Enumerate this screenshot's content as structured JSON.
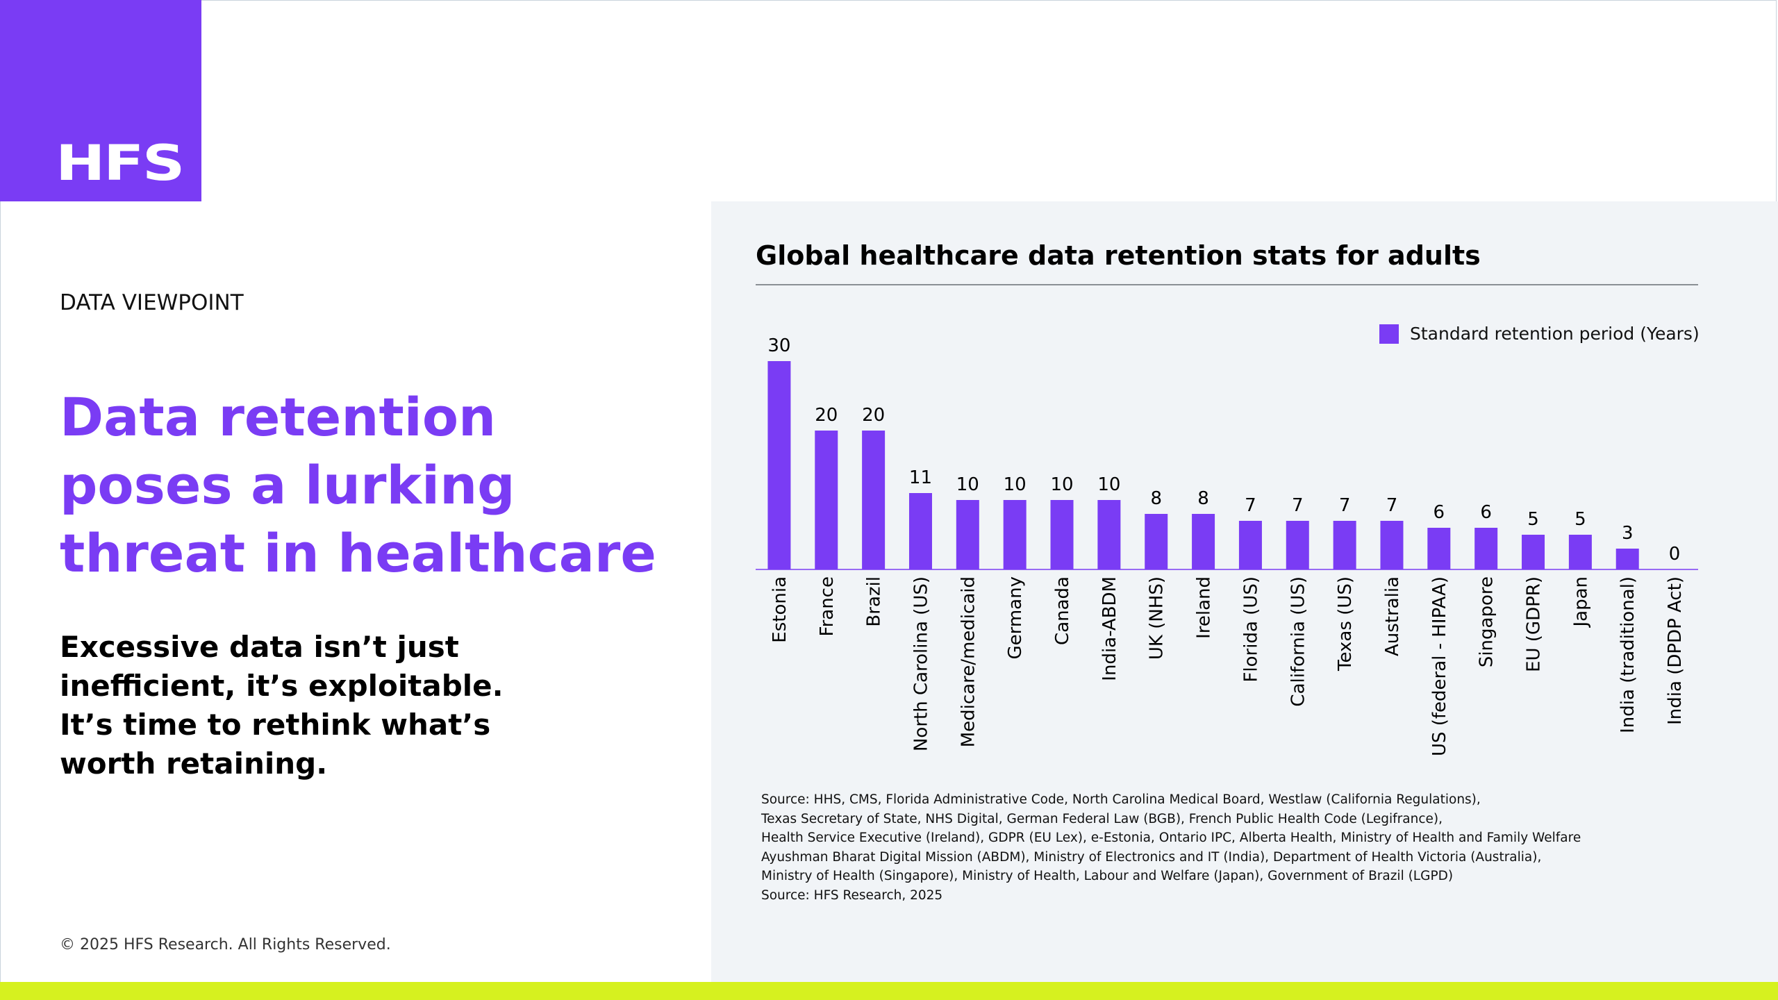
{
  "brand": {
    "logo_text": "HFS",
    "accent": "#7a3cf4",
    "highlight": "#d6f11f"
  },
  "kicker": "DATA VIEWPOINT",
  "headline": [
    "Data retention",
    "poses a lurking",
    "threat in healthcare"
  ],
  "subhead": [
    "Excessive data isn’t just",
    "inefficient, it’s exploitable.",
    "It’s time to rethink what’s",
    "worth retaining."
  ],
  "copyright": "© 2025 HFS Research. All Rights Reserved.",
  "chart_data": {
    "type": "bar",
    "title": "Global healthcare data retention stats for adults",
    "xlabel": "",
    "ylabel": "",
    "ylim": [
      0,
      30
    ],
    "grid": false,
    "legend_position": "top-right",
    "categories": [
      "Estonia",
      "France",
      "Brazil",
      "North Carolina (US)",
      "Medicare/medicaid",
      "Germany",
      "Canada",
      "India-ABDM",
      "UK (NHS)",
      "Ireland",
      "Florida (US)",
      "California (US)",
      "Texas (US)",
      "Australia",
      "US (federal - HIPAA)",
      "Singapore",
      "EU (GDPR)",
      "Japan",
      "India (traditional)",
      "India (DPDP Act)"
    ],
    "series": [
      {
        "name": "Standard retention period (Years)",
        "color": "#7a3cf4",
        "values": [
          30,
          20,
          20,
          11,
          10,
          10,
          10,
          10,
          8,
          8,
          7,
          7,
          7,
          7,
          6,
          6,
          5,
          5,
          3,
          0
        ]
      }
    ]
  },
  "source_lines": [
    "Source: HHS, CMS, Florida Administrative Code, North Carolina Medical Board, Westlaw (California Regulations),",
    "Texas Secretary of State, NHS Digital, German Federal Law (BGB), French Public Health Code (Legifrance),",
    "Health Service Executive (Ireland), GDPR (EU Lex), e-Estonia, Ontario IPC, Alberta Health, Ministry of Health and Family Welfare",
    "Ayushman Bharat Digital Mission (ABDM), Ministry of Electronics and IT (India), Department of Health Victoria (Australia),",
    "Ministry of Health (Singapore), Ministry of Health, Labour and Welfare (Japan), Government of Brazil (LGPD)",
    "Source: HFS Research, 2025"
  ]
}
